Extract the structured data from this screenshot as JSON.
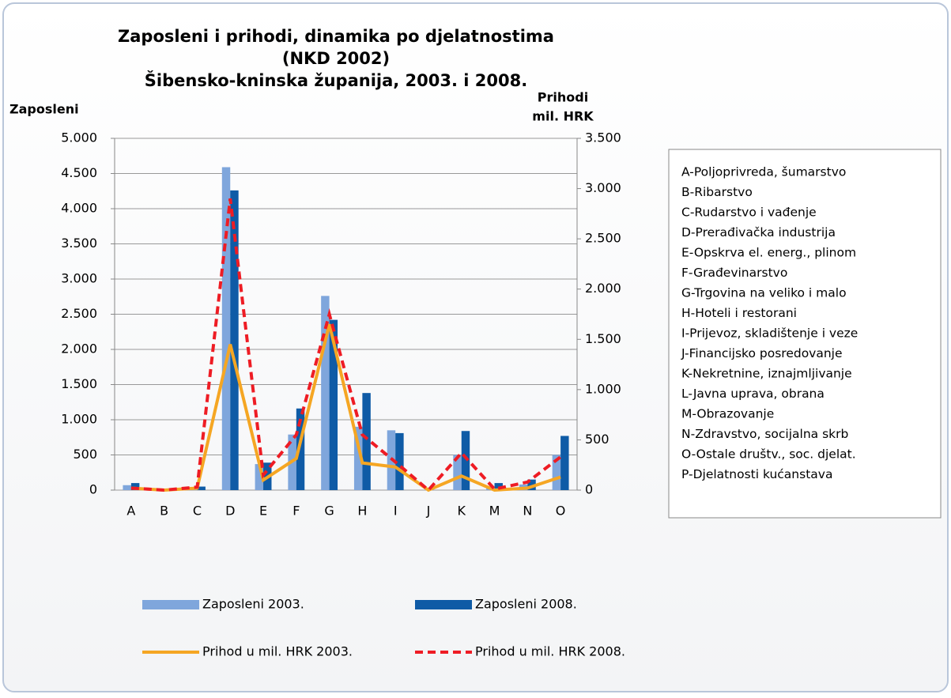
{
  "chart_data": {
    "type": "combo",
    "title": [
      "Zaposleni i prihodi, dinamika po djelatnostima",
      "(NKD 2002)",
      "Šibensko-kninska županija, 2003. i 2008."
    ],
    "y_label": "Zaposleni",
    "y2_label": [
      "Prihodi",
      "mil. HRK"
    ],
    "categories": [
      "A",
      "B",
      "C",
      "D",
      "E",
      "F",
      "G",
      "H",
      "I",
      "J",
      "K",
      "M",
      "N",
      "O"
    ],
    "series": [
      {
        "name": "Zaposleni 2003.",
        "type": "bar",
        "color": "#7fa6dc",
        "values": [
          70,
          5,
          20,
          4590,
          370,
          790,
          2760,
          900,
          850,
          0,
          500,
          30,
          80,
          500
        ]
      },
      {
        "name": "Zaposleni 2008.",
        "type": "bar",
        "color": "#0f5ba6",
        "values": [
          100,
          10,
          50,
          4260,
          390,
          1160,
          2420,
          1380,
          810,
          0,
          840,
          100,
          150,
          770
        ]
      },
      {
        "name": "Prihod u mil. HRK 2003.",
        "type": "line",
        "axis": "y2",
        "color": "#f5a623",
        "line_style": "solid",
        "values": [
          20,
          0,
          20,
          1450,
          100,
          315,
          1650,
          270,
          230,
          0,
          140,
          0,
          20,
          130
        ]
      },
      {
        "name": "Prihod u mil. HRK 2008.",
        "type": "line",
        "axis": "y2",
        "color": "#ee1c24",
        "line_style": "dashed",
        "values": [
          20,
          0,
          30,
          2900,
          150,
          550,
          1750,
          550,
          280,
          0,
          370,
          10,
          80,
          330
        ]
      }
    ],
    "ylim": [
      0,
      5000
    ],
    "yticks": [
      0,
      500,
      {
        "value": 1000,
        "label": "1.000"
      },
      {
        "value": 1500,
        "label": "1.500"
      },
      {
        "value": 2000,
        "label": "2.000"
      },
      {
        "value": 2500,
        "label": "2.500"
      },
      {
        "value": 3000,
        "label": "3.000"
      },
      {
        "value": 3500,
        "label": "3.500"
      },
      {
        "value": 4000,
        "label": "4.000"
      },
      {
        "value": 4500,
        "label": "4.500"
      },
      {
        "value": 5000,
        "label": "5.000"
      }
    ],
    "y2lim": [
      0,
      3500
    ],
    "y2ticks": [
      0,
      500,
      {
        "value": 1000,
        "label": "1.000"
      },
      {
        "value": 1500,
        "label": "1.500"
      },
      {
        "value": 2000,
        "label": "2.000"
      },
      {
        "value": 2500,
        "label": "2.500"
      },
      {
        "value": 3000,
        "label": "3.000"
      },
      {
        "value": 3500,
        "label": "3.500"
      }
    ],
    "grid": true,
    "legend": "bottom",
    "category_key": [
      "A-Poljoprivreda, šumarstvo",
      "B-Ribarstvo",
      "C-Rudarstvo i vađenje",
      "D-Prerađivačka industrija",
      "E-Opskrva el. energ., plinom",
      "F-Građevinarstvo",
      "G-Trgovina na veliko i malo",
      "H-Hoteli i restorani",
      "I-Prijevoz, skladištenje i veze",
      "J-Financijsko posredovanje",
      "K-Nekretnine, iznajmljivanje",
      "L-Javna uprava, obrana",
      "M-Obrazovanje",
      "N-Zdravstvo, socijalna skrb",
      "O-Ostale društv., soc. djelat.",
      "P-Djelatnosti kućanstava"
    ]
  }
}
